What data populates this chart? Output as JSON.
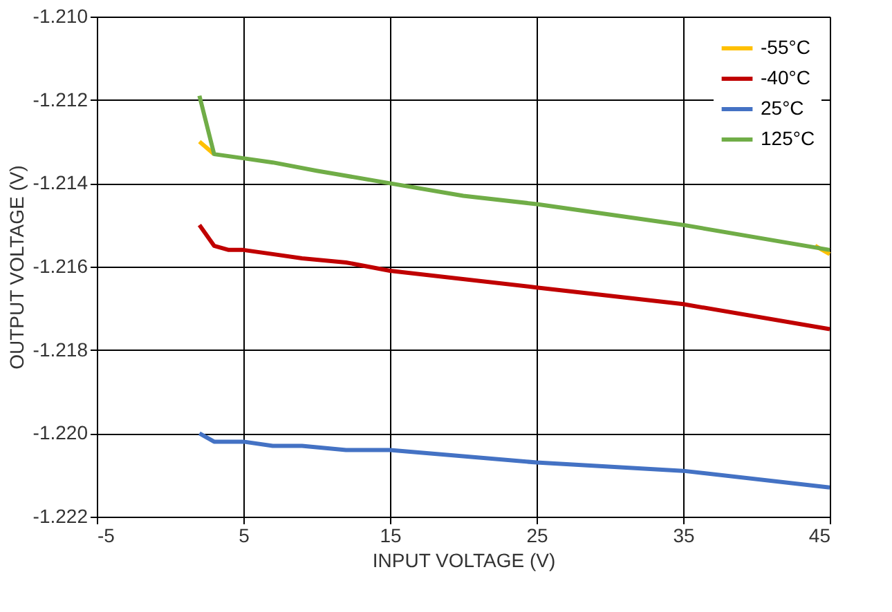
{
  "chart_data": {
    "type": "line",
    "xlabel": "INPUT VOLTAGE (V)",
    "ylabel": "OUTPUT VOLTAGE (V)",
    "xlim": [
      -5,
      45
    ],
    "xticks": [
      {
        "value": -5,
        "label": "-5"
      },
      5,
      15,
      25,
      35,
      45
    ],
    "ylim": [
      -1.222,
      -1.21
    ],
    "yticks": [
      {
        "value": -1.222,
        "label": "-1.222"
      },
      {
        "value": -1.22,
        "label": "-1.220"
      },
      {
        "value": -1.218,
        "label": "-1.218"
      },
      {
        "value": -1.216,
        "label": "-1.216"
      },
      {
        "value": -1.214,
        "label": "-1.214"
      },
      {
        "value": -1.212,
        "label": "-1.212"
      },
      {
        "value": -1.21,
        "label": "-1.210"
      }
    ],
    "grid": true,
    "legend": "top right",
    "marker": "none",
    "line_style": "solid",
    "series": [
      {
        "name": "-55°C",
        "color": "#ffc000",
        "x": [
          2,
          3,
          5,
          7,
          10,
          15,
          20,
          25,
          35,
          44,
          45
        ],
        "values": [
          -1.213,
          -1.2133,
          null,
          null,
          null,
          null,
          null,
          null,
          null,
          -1.2155,
          -1.2157
        ]
      },
      {
        "name": "-40°C",
        "color": "#c00000",
        "x": [
          2,
          3,
          4,
          5,
          7,
          9,
          12,
          15,
          25,
          35,
          45
        ],
        "values": [
          -1.215,
          -1.2155,
          -1.2156,
          -1.2156,
          -1.2157,
          -1.2158,
          -1.2159,
          -1.2161,
          -1.2165,
          -1.2169,
          -1.2175
        ]
      },
      {
        "name": "25°C",
        "color": "#4472c4",
        "x": [
          2,
          3,
          5,
          7,
          9,
          12,
          15,
          25,
          35,
          45
        ],
        "values": [
          -1.22,
          -1.2202,
          -1.2202,
          -1.2203,
          -1.2203,
          -1.2204,
          -1.2204,
          -1.2207,
          -1.2209,
          -1.2213
        ]
      },
      {
        "name": "125°C",
        "color": "#70ad47",
        "x": [
          2,
          3,
          5,
          7,
          10,
          15,
          20,
          25,
          35,
          45
        ],
        "values": [
          -1.2119,
          -1.2133,
          -1.2134,
          -1.2135,
          -1.2137,
          -1.214,
          -1.2143,
          -1.2145,
          -1.215,
          -1.2156
        ]
      }
    ]
  }
}
